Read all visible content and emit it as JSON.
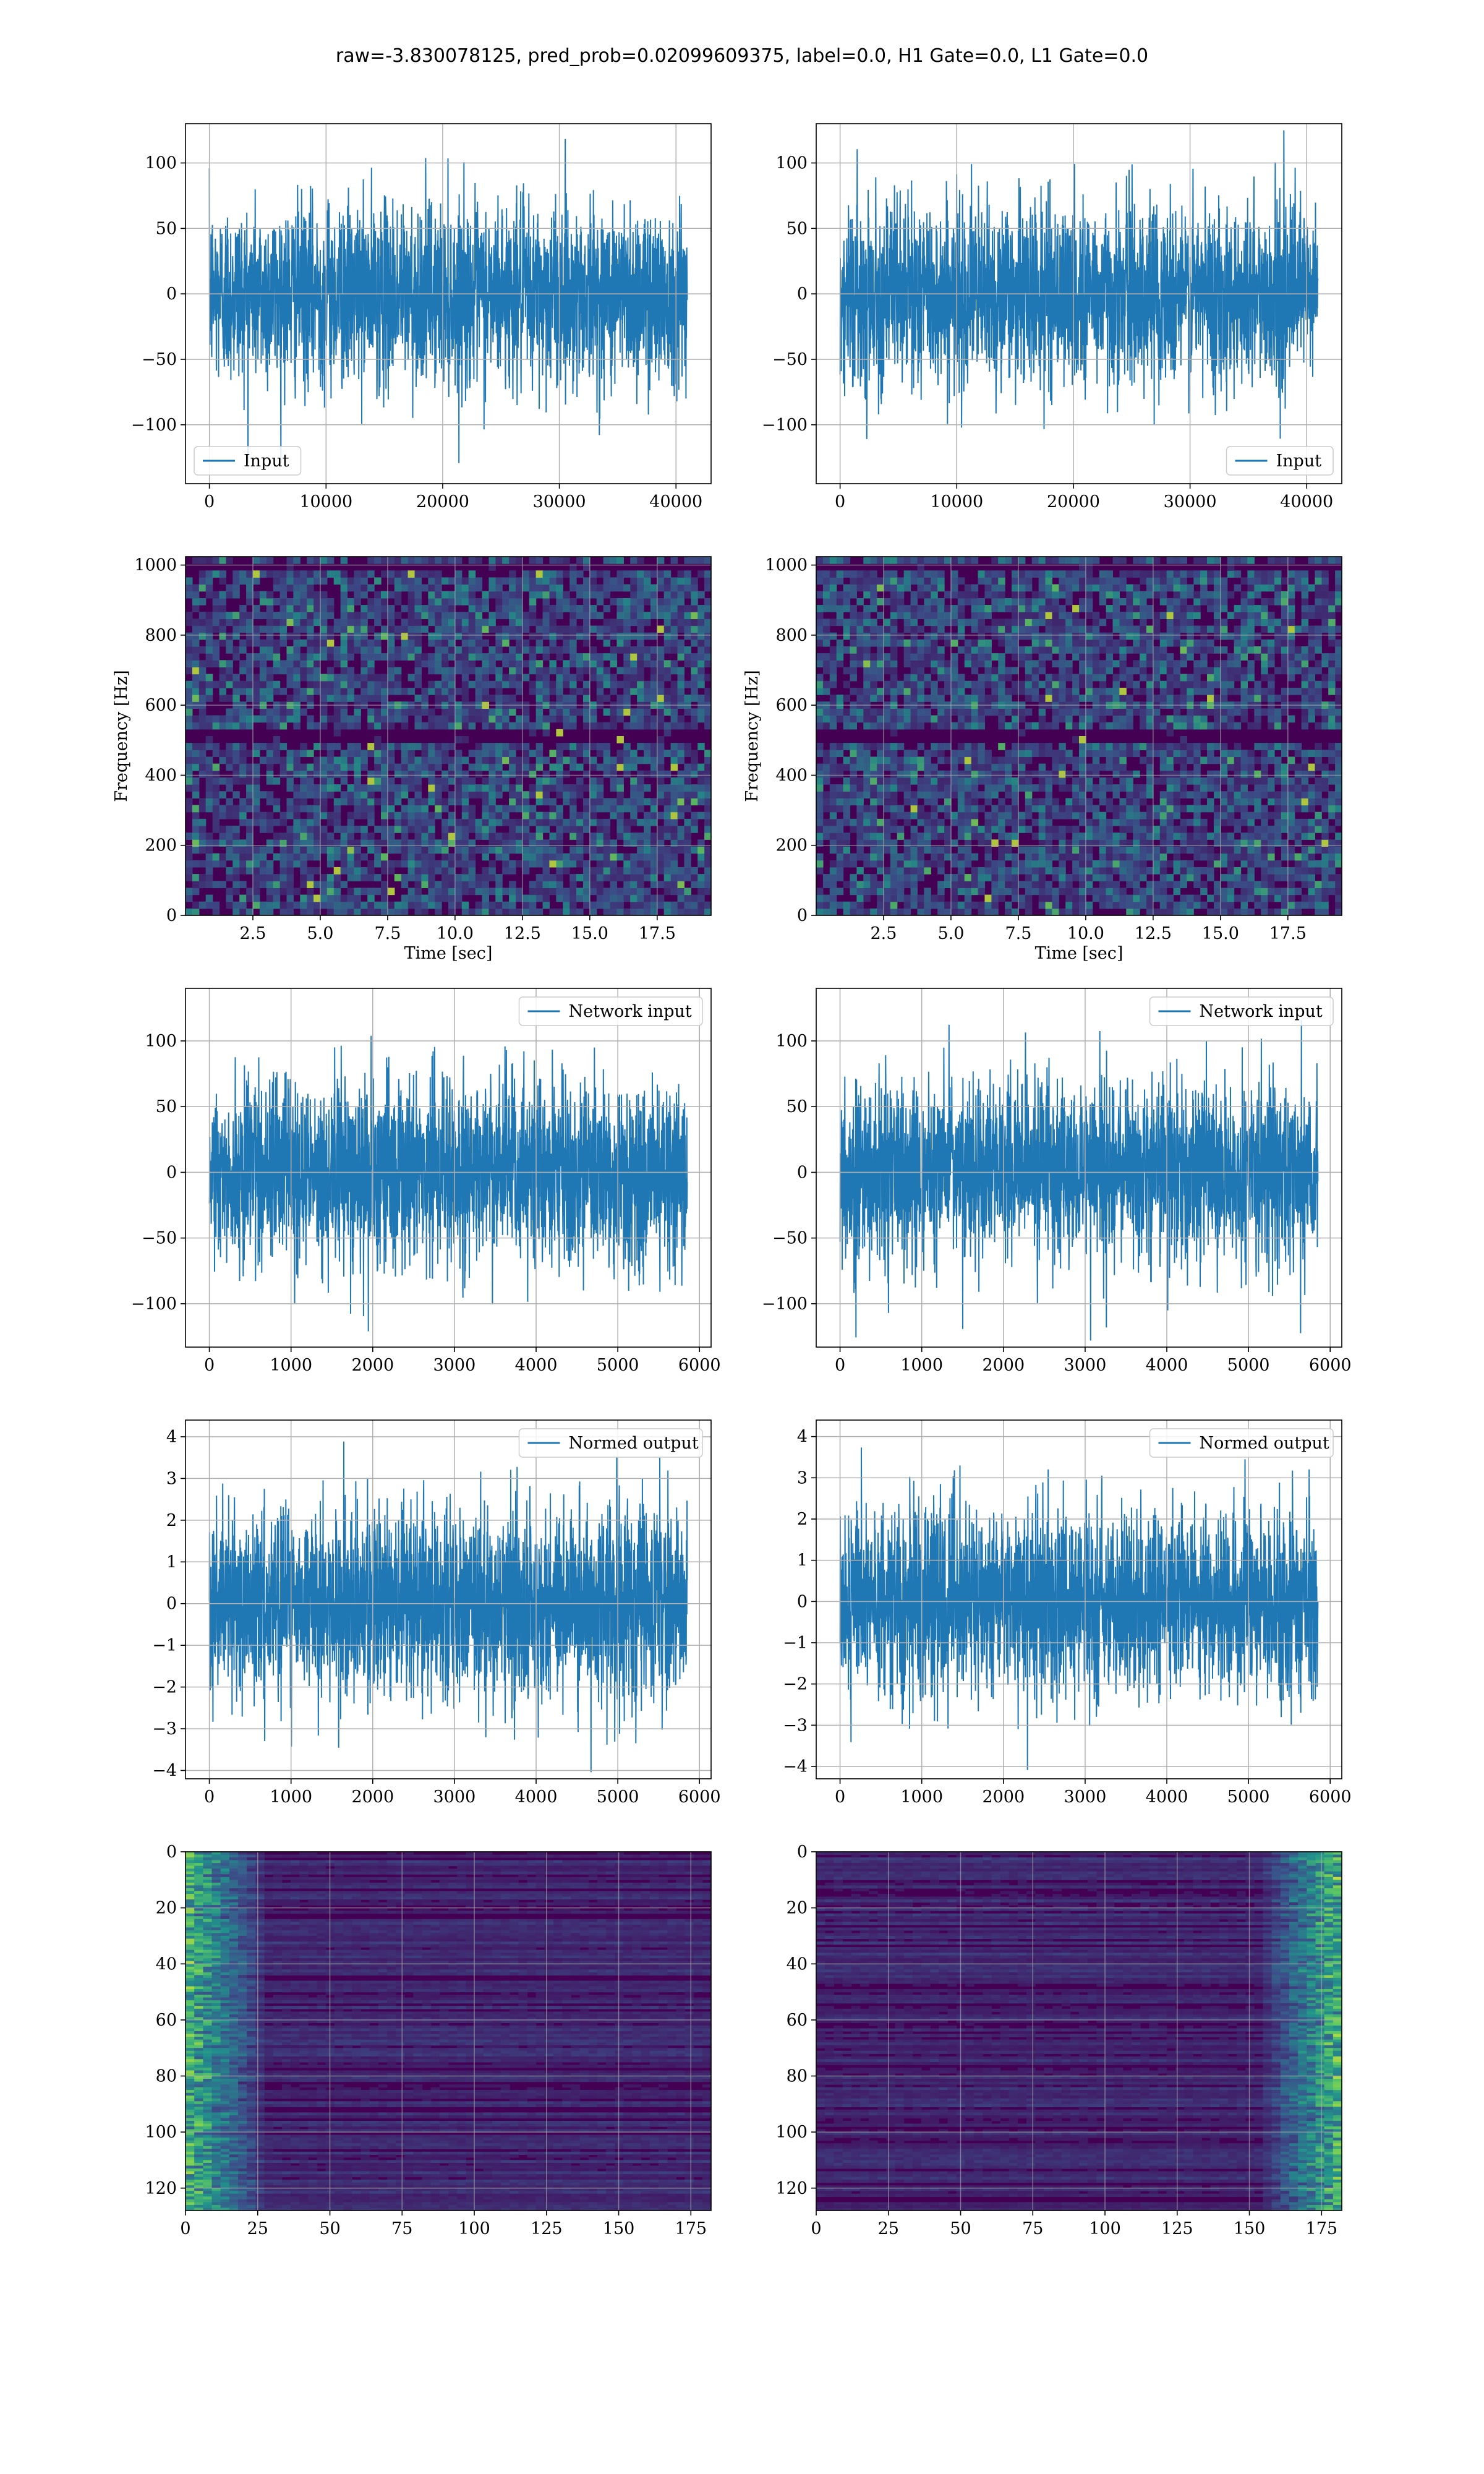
{
  "figure": {
    "title": "raw=-3.830078125, pred_prob=0.02099609375, label=0.0, H1 Gate=0.0, L1 Gate=0.0"
  },
  "colors": {
    "line": "#1f77b4",
    "grid": "#b0b0b0",
    "viridis_low": "#440154",
    "viridis_mid": "#21918c",
    "viridis_high": "#fde725"
  },
  "chart_data": [
    {
      "id": "input-left",
      "type": "line",
      "series": [
        {
          "name": "Input",
          "n": 40960,
          "std": 30,
          "mean": 0
        }
      ],
      "legend": "lower-left",
      "xlim": [
        -2048,
        43008
      ],
      "ylim": [
        -145,
        130
      ],
      "xticks": [
        0,
        10000,
        20000,
        30000,
        40000
      ],
      "yticks": [
        -100,
        -50,
        0,
        50,
        100
      ],
      "xticklabels": [
        "0",
        "10000",
        "20000",
        "30000",
        "40000"
      ],
      "yticklabels": [
        "−100",
        "−50",
        "0",
        "50",
        "100"
      ],
      "grid": true,
      "xlabel": "",
      "ylabel": ""
    },
    {
      "id": "input-right",
      "type": "line",
      "series": [
        {
          "name": "Input",
          "n": 40960,
          "std": 30,
          "mean": 0
        }
      ],
      "legend": "lower-right",
      "xlim": [
        -2048,
        43008
      ],
      "ylim": [
        -145,
        130
      ],
      "xticks": [
        0,
        10000,
        20000,
        30000,
        40000
      ],
      "yticks": [
        -100,
        -50,
        0,
        50,
        100
      ],
      "xticklabels": [
        "0",
        "10000",
        "20000",
        "30000",
        "40000"
      ],
      "yticklabels": [
        "−100",
        "−50",
        "0",
        "50",
        "100"
      ],
      "grid": true,
      "xlabel": "",
      "ylabel": ""
    },
    {
      "id": "spec-left",
      "type": "heatmap",
      "colormap": "viridis",
      "xlim": [
        0,
        19.5
      ],
      "ylim": [
        0,
        1024
      ],
      "xticks": [
        2.5,
        5.0,
        7.5,
        10.0,
        12.5,
        15.0,
        17.5
      ],
      "yticks": [
        0,
        200,
        400,
        600,
        800,
        1000
      ],
      "xticklabels": [
        "2.5",
        "5.0",
        "7.5",
        "10.0",
        "12.5",
        "15.0",
        "17.5"
      ],
      "yticklabels": [
        "0",
        "200",
        "400",
        "600",
        "800",
        "1000"
      ],
      "grid": true,
      "xlabel": "Time [sec]",
      "ylabel": "Frequency [Hz]",
      "dark_bands_hz": [
        500,
        512,
        990
      ]
    },
    {
      "id": "spec-right",
      "type": "heatmap",
      "colormap": "viridis",
      "xlim": [
        0,
        19.5
      ],
      "ylim": [
        0,
        1024
      ],
      "xticks": [
        2.5,
        5.0,
        7.5,
        10.0,
        12.5,
        15.0,
        17.5
      ],
      "yticks": [
        0,
        200,
        400,
        600,
        800,
        1000
      ],
      "xticklabels": [
        "2.5",
        "5.0",
        "7.5",
        "10.0",
        "12.5",
        "15.0",
        "17.5"
      ],
      "yticklabels": [
        "0",
        "200",
        "400",
        "600",
        "800",
        "1000"
      ],
      "grid": true,
      "xlabel": "Time [sec]",
      "ylabel": "Frequency [Hz]",
      "dark_bands_hz": [
        500,
        512,
        990
      ]
    },
    {
      "id": "netin-left",
      "type": "line",
      "series": [
        {
          "name": "Network input",
          "n": 5850,
          "std": 30,
          "mean": 0
        }
      ],
      "legend": "upper-right",
      "xlim": [
        -292,
        6142
      ],
      "ylim": [
        -133,
        140
      ],
      "xticks": [
        0,
        1000,
        2000,
        3000,
        4000,
        5000,
        6000
      ],
      "yticks": [
        -100,
        -50,
        0,
        50,
        100
      ],
      "xticklabels": [
        "0",
        "1000",
        "2000",
        "3000",
        "4000",
        "5000",
        "6000"
      ],
      "yticklabels": [
        "−100",
        "−50",
        "0",
        "50",
        "100"
      ],
      "grid": true,
      "xlabel": "",
      "ylabel": ""
    },
    {
      "id": "netin-right",
      "type": "line",
      "series": [
        {
          "name": "Network input",
          "n": 5850,
          "std": 30,
          "mean": 0
        }
      ],
      "legend": "upper-right",
      "xlim": [
        -292,
        6142
      ],
      "ylim": [
        -133,
        140
      ],
      "xticks": [
        0,
        1000,
        2000,
        3000,
        4000,
        5000,
        6000
      ],
      "yticks": [
        -100,
        -50,
        0,
        50,
        100
      ],
      "xticklabels": [
        "0",
        "1000",
        "2000",
        "3000",
        "4000",
        "5000",
        "6000"
      ],
      "yticklabels": [
        "−100",
        "−50",
        "0",
        "50",
        "100"
      ],
      "grid": true,
      "xlabel": "",
      "ylabel": ""
    },
    {
      "id": "normed-left",
      "type": "line",
      "series": [
        {
          "name": "Normed output",
          "n": 5850,
          "std": 1,
          "mean": 0
        }
      ],
      "legend": "upper-right",
      "xlim": [
        -292,
        6142
      ],
      "ylim": [
        -4.2,
        4.4
      ],
      "xticks": [
        0,
        1000,
        2000,
        3000,
        4000,
        5000,
        6000
      ],
      "yticks": [
        -4,
        -3,
        -2,
        -1,
        0,
        1,
        2,
        3,
        4
      ],
      "xticklabels": [
        "0",
        "1000",
        "2000",
        "3000",
        "4000",
        "5000",
        "6000"
      ],
      "yticklabels": [
        "−4",
        "−3",
        "−2",
        "−1",
        "0",
        "1",
        "2",
        "3",
        "4"
      ],
      "grid": true,
      "xlabel": "",
      "ylabel": ""
    },
    {
      "id": "normed-right",
      "type": "line",
      "series": [
        {
          "name": "Normed output",
          "n": 5850,
          "std": 1,
          "mean": 0
        }
      ],
      "legend": "upper-right",
      "xlim": [
        -292,
        6142
      ],
      "ylim": [
        -4.3,
        4.4
      ],
      "xticks": [
        0,
        1000,
        2000,
        3000,
        4000,
        5000,
        6000
      ],
      "yticks": [
        -4,
        -3,
        -2,
        -1,
        0,
        1,
        2,
        3,
        4
      ],
      "xticklabels": [
        "0",
        "1000",
        "2000",
        "3000",
        "4000",
        "5000",
        "6000"
      ],
      "yticklabels": [
        "−4",
        "−3",
        "−2",
        "−1",
        "0",
        "1",
        "2",
        "3",
        "4"
      ],
      "grid": true,
      "xlabel": "",
      "ylabel": ""
    },
    {
      "id": "feat-left",
      "type": "heatmap",
      "colormap": "viridis",
      "xlim": [
        0,
        182
      ],
      "ylim": [
        128,
        0
      ],
      "xticks": [
        0,
        25,
        50,
        75,
        100,
        125,
        150,
        175
      ],
      "yticks": [
        0,
        20,
        40,
        60,
        80,
        100,
        120
      ],
      "xticklabels": [
        "0",
        "25",
        "50",
        "75",
        "100",
        "125",
        "150",
        "175"
      ],
      "yticklabels": [
        "0",
        "20",
        "40",
        "60",
        "80",
        "100",
        "120"
      ],
      "grid": true,
      "xlabel": "",
      "ylabel": "",
      "bright_region": "left edge, columns 0-25"
    },
    {
      "id": "feat-right",
      "type": "heatmap",
      "colormap": "viridis",
      "xlim": [
        0,
        182
      ],
      "ylim": [
        128,
        0
      ],
      "xticks": [
        0,
        25,
        50,
        75,
        100,
        125,
        150,
        175
      ],
      "yticks": [
        0,
        20,
        40,
        60,
        80,
        100,
        120
      ],
      "xticklabels": [
        "0",
        "25",
        "50",
        "75",
        "100",
        "125",
        "150",
        "175"
      ],
      "yticklabels": [
        "0",
        "20",
        "40",
        "60",
        "80",
        "100",
        "120"
      ],
      "grid": true,
      "xlabel": "",
      "ylabel": "",
      "bright_region": "right edge, columns 150-182"
    }
  ]
}
